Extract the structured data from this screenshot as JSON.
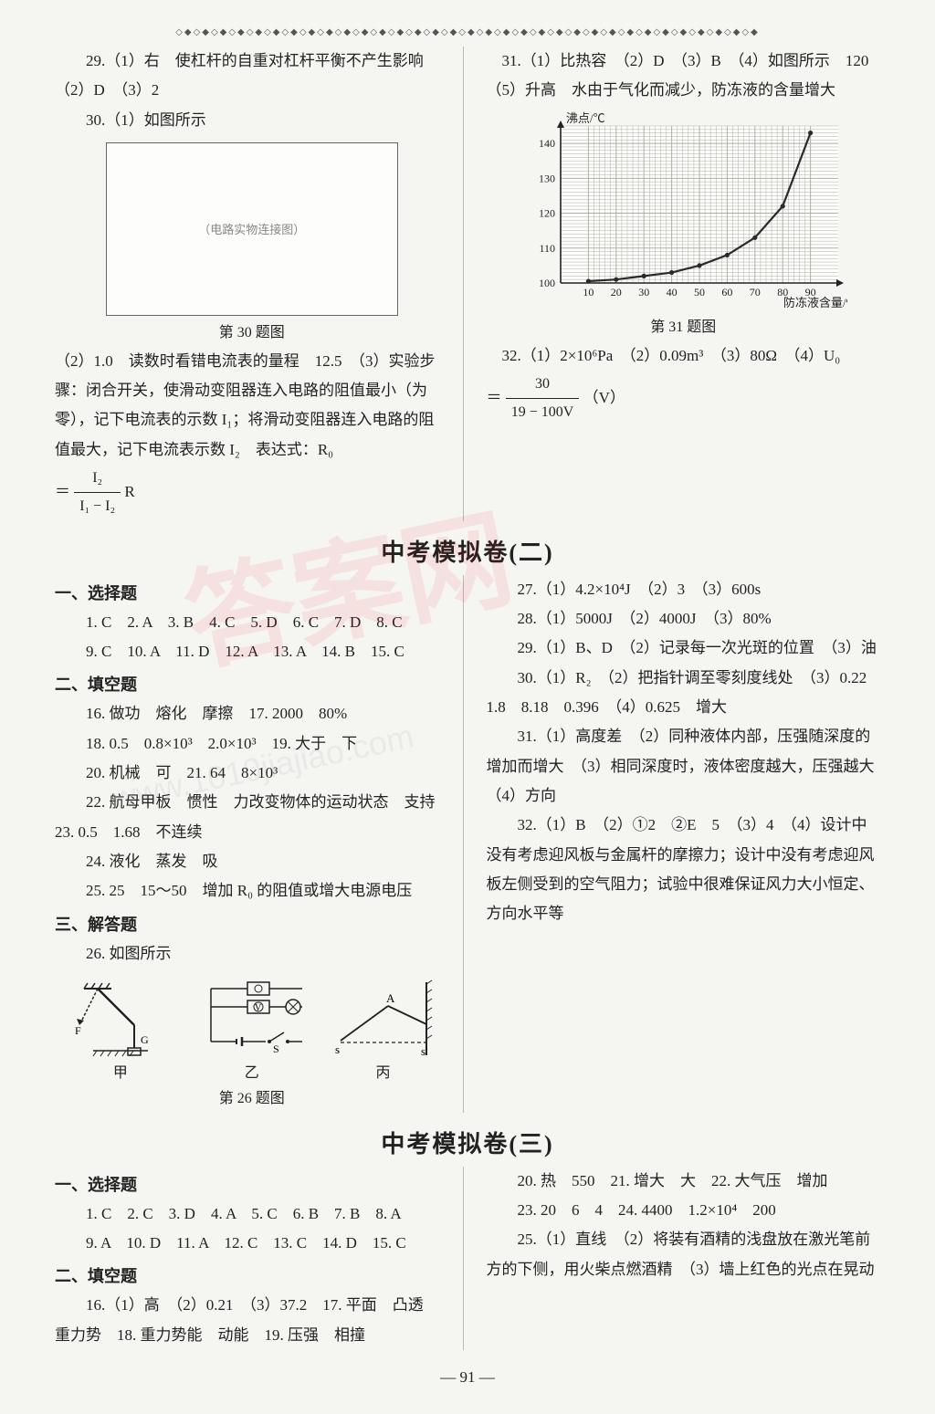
{
  "decor_border": "◇◆◇◆◇◆◇◆◇◆◇◆◇◆◇◆◇◆◇◆◇◆◇◆◇◆◇◆◇◆◇◆◇◆◇◆◇◆◇◆◇◆◇◆◇◆◇◆◇◆◇◆◇◆◇◆◇◆◇◆◇◆◇◆◇◆",
  "top": {
    "left": {
      "q29": "29.（1）右　使杠杆的自重对杠杆平衡不产生影响（2）D　（3）2",
      "q30_a": "30.（1）如图所示",
      "fig30_caption": "第 30 题图",
      "fig30_placeholder": "（电路实物连接图）",
      "q30_b": "（2）1.0　读数时看错电流表的量程　12.5　（3）实验步骤：闭合开关，使滑动变阻器连入电路的阻值最小（为零），记下电流表的示数 I₁；将滑动变阻器连入电路的阻值最大，记下电流表示数 I₂　表达式：R₀",
      "frac_pref": "＝",
      "frac_num": "I₂",
      "frac_den": "I₁ − I₂",
      "frac_suffix": "R"
    },
    "right": {
      "q31_a": "31.（1）比热容　（2）D　（3）B　（4）如图所示　120（5）升高　水由于气化而减少，防冻液的含量增大",
      "chart": {
        "type": "line",
        "xlabel": "防冻液含量/%",
        "ylabel": "沸点/℃",
        "xlim": [
          0,
          100
        ],
        "ylim": [
          100,
          145
        ],
        "xticks": [
          10,
          20,
          30,
          40,
          50,
          60,
          70,
          80,
          90
        ],
        "yticks": [
          100,
          110,
          120,
          130,
          140
        ],
        "points": [
          [
            10,
            100.5
          ],
          [
            20,
            101
          ],
          [
            30,
            102
          ],
          [
            40,
            103
          ],
          [
            50,
            105
          ],
          [
            60,
            108
          ],
          [
            70,
            113
          ],
          [
            80,
            122
          ],
          [
            90,
            143
          ]
        ],
        "bg": "#fdfdfb",
        "grid_color": "#b0b0a8",
        "line_color": "#2a2a2a",
        "axis_color": "#222",
        "line_width": 2.2,
        "marker": "circle",
        "marker_radius": 2.6
      },
      "fig31_caption": "第 31 题图",
      "q32": "32.（1）2×10⁶Pa　（2）0.09m³　（3）80Ω　（4）U₀",
      "eq32_pref": "＝",
      "eq32_num": "30",
      "eq32_den": "19 − 100V",
      "eq32_suffix": "（V）"
    }
  },
  "mock2": {
    "title": "中考模拟卷(二)",
    "left": {
      "h1": "一、选择题",
      "choices1": "1. C　2. A　3. B　4. C　5. D　6. C　7. D　8. C",
      "choices2": "9. C　10. A　11. D　12. A　13. A　14. B　15. C",
      "h2": "二、填空题",
      "f16": "16. 做功　熔化　摩擦　17. 2000　80%",
      "f18": "18. 0.5　0.8×10³　2.0×10³　19. 大于　下",
      "f20": "20. 机械　可　21. 64　8×10³",
      "f22": "22. 航母甲板　惯性　力改变物体的运动状态　支持　23. 0.5　1.68　不连续",
      "f24": "24. 液化　蒸发　吸",
      "f25": "25. 25　15～50　增加 R₀ 的阻值或增大电源电压",
      "h3": "三、解答题",
      "q26": "26. 如图所示",
      "labels": {
        "a": "甲",
        "b": "乙",
        "c": "丙"
      },
      "fig26_caption": "第 26 题图"
    },
    "right": {
      "q27": "27.（1）4.2×10⁴J　（2）3　（3）600s",
      "q28": "28.（1）5000J　（2）4000J　（3）80%",
      "q29": "29.（1）B、D　（2）记录每一次光斑的位置　（3）油",
      "q30": "30.（1）R₂　（2）把指针调至零刻度线处　（3）0.22　1.8　8.18　0.396　（4）0.625　增大",
      "q31": "31.（1）高度差　（2）同种液体内部，压强随深度的增加而增大　（3）相同深度时，液体密度越大，压强越大　（4）方向",
      "q32": "32.（1）B　（2）①2　②E　5　（3）4　（4）设计中没有考虑迎风板与金属杆的摩擦力；设计中没有考虑迎风板左侧受到的空气阻力；试验中很难保证风力大小恒定、方向水平等"
    }
  },
  "mock3": {
    "title": "中考模拟卷(三)",
    "left": {
      "h1": "一、选择题",
      "choices1": "1. C　2. C　3. D　4. A　5. C　6. B　7. B　8. A",
      "choices2": "9. A　10. D　11. A　12. C　13. C　14. D　15. C",
      "h2": "二、填空题",
      "f16": "16.（1）高　（2）0.21　（3）37.2　17. 平面　凸透　重力势　18. 重力势能　动能　19. 压强　相撞"
    },
    "right": {
      "f20": "20. 热　550　21. 增大　大　22. 大气压　增加",
      "f23": "23. 20　6　4　24. 4400　1.2×10⁴　200",
      "f25": "25.（1）直线　（2）将装有酒精的浅盘放在激光笔前方的下侧，用火柴点燃酒精　（3）墙上红色的光点在晃动"
    }
  },
  "page_num": "— 91 —",
  "watermark_text": "答案网"
}
